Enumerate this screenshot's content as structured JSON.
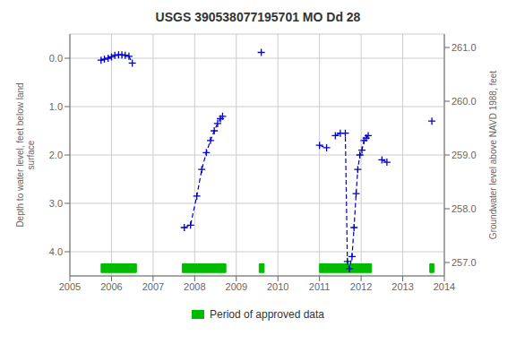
{
  "chart_data": {
    "type": "line",
    "title": "USGS 390538077195701 MO Dd 28",
    "y_label": "Depth to water level, feet below land\nsurface",
    "y2_label": "Groundwater level above NAVD 1988, feet",
    "xlim": [
      2005,
      2014
    ],
    "xticks": [
      2005,
      2006,
      2007,
      2008,
      2009,
      2010,
      2011,
      2012,
      2013,
      2014
    ],
    "ylim": [
      4.5,
      -0.5
    ],
    "yticks": [
      {
        "value": 0.0,
        "label": "0.0"
      },
      {
        "value": 1.0,
        "label": "1.0"
      },
      {
        "value": 2.0,
        "label": "2.0"
      },
      {
        "value": 3.0,
        "label": "3.0"
      },
      {
        "value": 4.0,
        "label": "4.0"
      }
    ],
    "y2lim": [
      256.75,
      261.25
    ],
    "y2ticks": [
      {
        "value": 257.0,
        "label": "257.0"
      },
      {
        "value": 258.0,
        "label": "258.0"
      },
      {
        "value": 259.0,
        "label": "259.0"
      },
      {
        "value": 260.0,
        "label": "260.0"
      },
      {
        "value": 261.0,
        "label": "261.0"
      }
    ],
    "grid": true,
    "legend": "bottom",
    "series": [
      {
        "color": "#0000cc",
        "line_style": "dashed",
        "marker": "plus",
        "x": [
          2005.75,
          2005.83,
          2005.92,
          2006.0,
          2006.08,
          2006.17,
          2006.25,
          2006.33,
          2006.42,
          2006.5
        ],
        "values": [
          0.04,
          0.02,
          0.0,
          -0.03,
          -0.06,
          -0.07,
          -0.07,
          -0.06,
          -0.04,
          0.1
        ]
      },
      {
        "color": "#0000cc",
        "line_style": "dashed",
        "marker": "plus",
        "x": [
          2007.75,
          2007.9,
          2008.05,
          2008.17,
          2008.28,
          2008.38,
          2008.47,
          2008.55,
          2008.62,
          2008.67
        ],
        "values": [
          3.5,
          3.45,
          2.85,
          2.3,
          1.95,
          1.7,
          1.5,
          1.35,
          1.25,
          1.2
        ]
      },
      {
        "color": "#0000cc",
        "line_style": "dashed",
        "marker": "plus",
        "x": [
          2009.6
        ],
        "values": [
          -0.12
        ]
      },
      {
        "color": "#0000cc",
        "line_style": "dashed",
        "marker": "plus",
        "x": [
          2011.0,
          2011.17
        ],
        "values": [
          1.8,
          1.85
        ]
      },
      {
        "color": "#0000cc",
        "line_style": "dashed",
        "marker": "plus",
        "x": [
          2011.38,
          2011.5,
          2011.62,
          2011.67,
          2011.72,
          2011.78,
          2011.83,
          2011.88,
          2011.92,
          2011.97,
          2012.02,
          2012.07,
          2012.12,
          2012.17
        ],
        "values": [
          1.6,
          1.55,
          1.55,
          4.2,
          4.35,
          4.1,
          3.5,
          2.8,
          2.3,
          2.0,
          1.9,
          1.7,
          1.65,
          1.6
        ]
      },
      {
        "color": "#0000cc",
        "line_style": "dashed",
        "marker": "plus",
        "x": [
          2012.5,
          2012.62
        ],
        "values": [
          2.1,
          2.15
        ]
      },
      {
        "color": "#0000cc",
        "line_style": "dashed",
        "marker": "plus",
        "x": [
          2013.7
        ],
        "values": [
          1.3
        ]
      }
    ],
    "approved_periods": {
      "name": "Period of approved data",
      "color": "#00bb00",
      "ranges": [
        [
          2005.75,
          2006.6
        ],
        [
          2007.7,
          2008.75
        ],
        [
          2009.55,
          2009.67
        ],
        [
          2011.0,
          2012.25
        ],
        [
          2013.65,
          2013.75
        ]
      ]
    }
  }
}
